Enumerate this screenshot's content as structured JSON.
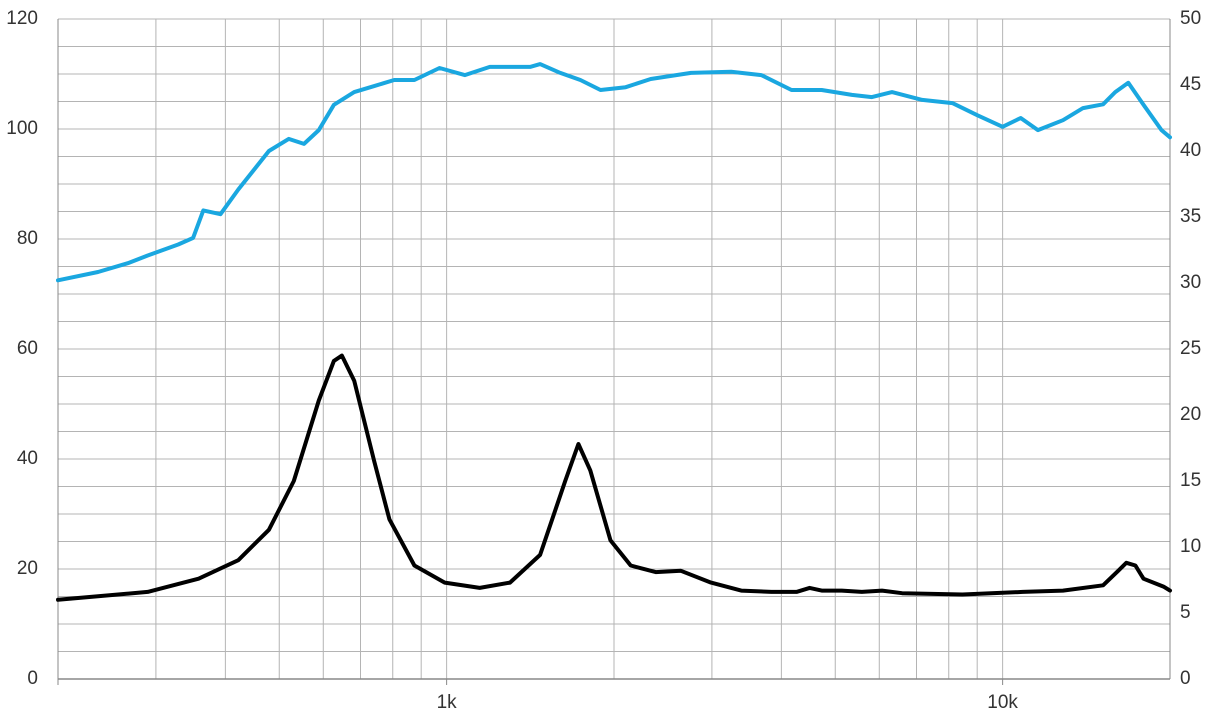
{
  "chart_data": {
    "type": "line",
    "xscale": "log",
    "xlim": [
      200,
      20000
    ],
    "xticks": [
      {
        "value": 1000,
        "label": "1k"
      },
      {
        "value": 10000,
        "label": "10k"
      }
    ],
    "xgrid": [
      200,
      300,
      400,
      500,
      600,
      700,
      800,
      900,
      1000,
      2000,
      3000,
      4000,
      5000,
      6000,
      7000,
      8000,
      9000,
      10000,
      20000
    ],
    "ylim": [
      0,
      120
    ],
    "yticks": [
      0,
      20,
      40,
      60,
      80,
      100,
      120
    ],
    "ygrid": [
      0,
      5,
      10,
      15,
      20,
      25,
      30,
      35,
      40,
      45,
      50,
      55,
      60,
      65,
      70,
      75,
      80,
      85,
      90,
      95,
      100,
      105,
      110,
      115,
      120
    ],
    "y2lim": [
      0,
      50
    ],
    "y2ticks": [
      0,
      5,
      10,
      15,
      20,
      25,
      30,
      35,
      40,
      45,
      50
    ],
    "grid": true,
    "series": [
      {
        "color": "#1aa7e0",
        "axis": "y",
        "x": [
          200,
          236,
          267,
          290,
          329,
          350,
          365,
          392,
          422,
          479,
          520,
          554,
          589,
          627,
          682,
          741,
          805,
          875,
          971,
          1078,
          1196,
          1413,
          1473,
          1601,
          1740,
          1891,
          2099,
          2328,
          2751,
          3250,
          3681,
          4172,
          4727,
          5356,
          5820,
          6325,
          7166,
          8121,
          9011,
          10000,
          10778,
          11571,
          12839,
          13951,
          15160,
          15940,
          16830,
          17920,
          19310,
          20000
        ],
        "values": [
          72.5,
          74,
          75.6,
          77,
          79,
          80.2,
          85.2,
          84.5,
          89,
          96,
          98.2,
          97.3,
          99.8,
          104.4,
          106.7,
          107.8,
          108.9,
          108.9,
          111.1,
          109.8,
          111.3,
          111.3,
          111.8,
          110.2,
          108.9,
          107.1,
          107.6,
          109.1,
          110.2,
          110.4,
          109.8,
          107.1,
          107.1,
          106.2,
          105.8,
          106.7,
          105.3,
          104.7,
          102.5,
          100.4,
          102,
          99.8,
          101.6,
          103.8,
          104.5,
          106.7,
          108.4,
          104.4,
          99.8,
          98.5
        ]
      },
      {
        "color": "#000000",
        "axis": "y2",
        "x": [
          200,
          290,
          358,
          422,
          479,
          531,
          589,
          627,
          648,
          682,
          741,
          789,
          875,
          992,
          1147,
          1300,
          1473,
          1634,
          1726,
          1813,
          1971,
          2143,
          2377,
          2638,
          2989,
          3387,
          3838,
          4259,
          4496,
          4727,
          5137,
          5582,
          6067,
          6596,
          8467,
          10870,
          12839,
          15160,
          16140,
          16690,
          17330,
          17920,
          19470,
          20000
        ],
        "values": [
          6.0,
          6.6,
          7.6,
          9.0,
          11.3,
          15.0,
          21.1,
          24.1,
          24.5,
          22.6,
          16.5,
          12.1,
          8.6,
          7.3,
          6.9,
          7.3,
          9.4,
          15.0,
          17.8,
          15.8,
          10.5,
          8.6,
          8.1,
          8.2,
          7.3,
          6.7,
          6.6,
          6.6,
          6.9,
          6.7,
          6.7,
          6.6,
          6.7,
          6.5,
          6.4,
          6.6,
          6.7,
          7.1,
          8.2,
          8.8,
          8.6,
          7.6,
          7.0,
          6.7
        ]
      }
    ]
  }
}
